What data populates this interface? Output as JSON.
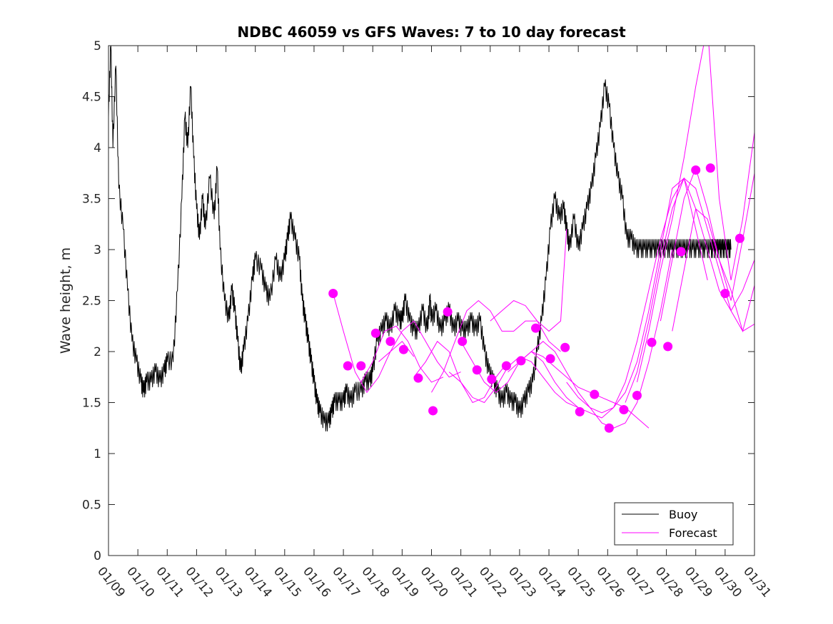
{
  "chart_data": {
    "type": "line",
    "title": "NDBC 46059 vs GFS Waves: 7 to 10 day forecast",
    "xlabel": "",
    "ylabel": "Wave height, m",
    "ylim": [
      0,
      5
    ],
    "xlim_days": [
      0,
      22
    ],
    "x_tick_labels": [
      "01/09",
      "01/10",
      "01/11",
      "01/12",
      "01/13",
      "01/14",
      "01/15",
      "01/16",
      "01/17",
      "01/18",
      "01/19",
      "01/20",
      "01/21",
      "01/22",
      "01/23",
      "01/24",
      "01/25",
      "01/26",
      "01/27",
      "01/28",
      "01/29",
      "01/30",
      "01/31"
    ],
    "y_tick_labels": [
      "0",
      "0.5",
      "1",
      "1.5",
      "2",
      "2.5",
      "3",
      "3.5",
      "4",
      "4.5",
      "5"
    ],
    "y_ticks": [
      0,
      0.5,
      1,
      1.5,
      2,
      2.5,
      3,
      3.5,
      4,
      4.5,
      5
    ],
    "legend": {
      "position": "bottom-right",
      "entries": [
        "Buoy",
        "Forecast"
      ]
    },
    "colors": {
      "buoy": "#000000",
      "forecast": "#ff00ff"
    },
    "buoy_series": {
      "name": "Buoy",
      "x": [
        0,
        0.08,
        0.15,
        0.25,
        0.35,
        0.5,
        0.65,
        0.8,
        0.95,
        1.1,
        1.2,
        1.3,
        1.45,
        1.6,
        1.75,
        1.9,
        2.0,
        2.2,
        2.35,
        2.5,
        2.6,
        2.7,
        2.8,
        2.9,
        3.0,
        3.1,
        3.2,
        3.3,
        3.45,
        3.6,
        3.7,
        3.8,
        3.95,
        4.1,
        4.2,
        4.3,
        4.4,
        4.5,
        4.6,
        4.75,
        4.9,
        5.0,
        5.2,
        5.35,
        5.5,
        5.7,
        5.85,
        6.0,
        6.1,
        6.2,
        6.35,
        6.5,
        6.6,
        6.7,
        6.8,
        6.9,
        7.0,
        7.1,
        7.2,
        7.35,
        7.5,
        7.6,
        7.7,
        7.85,
        8.0,
        8.1,
        8.25,
        8.4,
        8.6,
        8.75,
        8.9,
        9.0,
        9.15,
        9.3,
        9.45,
        9.6,
        9.75,
        9.9,
        10.0,
        10.1,
        10.25,
        10.4,
        10.55,
        10.7,
        10.85,
        10.95,
        11.0,
        11.15,
        11.3,
        11.45,
        11.6,
        11.75,
        11.9,
        12.05,
        12.2,
        12.35,
        12.5,
        12.65,
        12.8,
        12.95,
        13.1,
        13.25,
        13.4,
        13.55,
        13.7,
        13.85,
        14.0,
        14.15,
        14.3,
        14.45,
        14.6,
        14.75,
        14.9,
        15.05,
        15.2,
        15.35,
        15.5,
        15.6,
        15.7,
        15.85,
        16.0,
        16.15,
        16.3,
        16.45,
        16.6,
        16.75,
        16.9,
        17.05,
        17.2,
        17.35,
        17.5,
        17.65,
        17.8,
        17.95,
        18.1,
        18.25,
        18.4,
        18.55,
        18.7,
        18.85,
        19.0,
        19.15,
        19.3,
        19.45,
        19.6,
        19.75,
        19.9,
        20.05,
        20.2,
        20.35,
        20.5,
        20.6,
        20.7,
        20.8,
        20.9,
        21.0,
        21.1,
        21.2
      ],
      "y": [
        4.3,
        5.0,
        4.0,
        4.8,
        3.6,
        3.2,
        2.6,
        2.1,
        1.9,
        1.7,
        1.6,
        1.7,
        1.7,
        1.8,
        1.7,
        1.8,
        1.9,
        1.9,
        2.6,
        3.5,
        4.3,
        4.0,
        4.6,
        3.9,
        3.4,
        3.1,
        3.5,
        3.2,
        3.7,
        3.3,
        3.8,
        3.0,
        2.5,
        2.3,
        2.6,
        2.4,
        2.1,
        1.8,
        2.0,
        2.3,
        2.7,
        2.9,
        2.8,
        2.6,
        2.5,
        2.9,
        2.7,
        2.9,
        3.1,
        3.3,
        3.1,
        2.9,
        2.5,
        2.3,
        2.1,
        1.9,
        1.7,
        1.5,
        1.4,
        1.3,
        1.3,
        1.4,
        1.5,
        1.5,
        1.5,
        1.6,
        1.5,
        1.6,
        1.6,
        1.7,
        1.7,
        1.8,
        2.1,
        2.2,
        2.3,
        2.2,
        2.4,
        2.3,
        2.3,
        2.5,
        2.3,
        2.2,
        2.2,
        2.4,
        2.2,
        2.5,
        2.3,
        2.4,
        2.2,
        2.3,
        2.4,
        2.2,
        2.3,
        2.2,
        2.2,
        2.3,
        2.2,
        2.3,
        2.0,
        1.8,
        1.7,
        1.6,
        1.5,
        1.6,
        1.5,
        1.5,
        1.4,
        1.5,
        1.6,
        1.7,
        2.0,
        2.3,
        2.7,
        3.2,
        3.5,
        3.3,
        3.4,
        3.2,
        3.0,
        3.3,
        3.0,
        3.2,
        3.4,
        3.6,
        3.9,
        4.2,
        4.6,
        4.4,
        4.0,
        3.7,
        3.5,
        3.1,
        3.1,
        3.0,
        3.0,
        3.0,
        3.0,
        3.0,
        3.0,
        3.0,
        3.0,
        3.0,
        3.0,
        3.0,
        3.0,
        3.0,
        3.0,
        3.0,
        3.0,
        3.0,
        3.0,
        3.0,
        3.0,
        3.0,
        3.0,
        3.0,
        3.0,
        3.0
      ]
    },
    "forecast_markers": {
      "name": "Forecast",
      "x": [
        7.65,
        8.15,
        8.6,
        9.1,
        9.6,
        10.05,
        10.55,
        11.05,
        11.55,
        12.05,
        12.55,
        13.05,
        13.55,
        14.05,
        14.55,
        15.05,
        15.55,
        16.05,
        16.55,
        17.05,
        17.55,
        18.0,
        18.5,
        19.05,
        19.5,
        20.0,
        20.5,
        21.0,
        21.5
      ],
      "y": [
        2.57,
        1.86,
        1.86,
        2.18,
        2.1,
        2.02,
        1.74,
        1.42,
        2.39,
        2.1,
        1.82,
        1.73,
        1.86,
        1.91,
        2.23,
        1.93,
        2.04,
        1.41,
        1.58,
        1.25,
        1.43,
        1.57,
        2.09,
        2.05,
        2.98,
        3.78,
        3.8,
        2.57,
        3.11
      ]
    },
    "forecast_lines": [
      {
        "x": [
          7.65,
          8.0,
          8.4,
          8.8,
          9.2,
          9.6,
          10.0,
          10.4
        ],
        "y": [
          2.57,
          2.2,
          1.8,
          1.6,
          1.75,
          2.0,
          2.1,
          1.95
        ]
      },
      {
        "x": [
          8.6,
          9.0,
          9.4,
          9.8,
          10.2,
          10.6,
          11.0,
          11.4
        ],
        "y": [
          1.7,
          1.9,
          2.2,
          2.25,
          2.1,
          1.85,
          1.7,
          1.75
        ]
      },
      {
        "x": [
          9.2,
          9.6,
          10.0,
          10.4,
          10.8,
          11.2,
          11.6,
          12.0
        ],
        "y": [
          1.9,
          2.0,
          2.2,
          2.3,
          2.1,
          1.9,
          1.75,
          1.8
        ]
      },
      {
        "x": [
          10.4,
          10.8,
          11.2,
          11.6,
          12.0,
          12.4,
          12.8,
          13.2,
          13.6
        ],
        "y": [
          1.75,
          1.9,
          2.1,
          2.0,
          1.7,
          1.5,
          1.55,
          1.75,
          1.9
        ]
      },
      {
        "x": [
          11.0,
          11.4,
          11.8,
          12.2,
          12.6,
          13.0,
          13.4,
          13.8,
          14.2,
          14.6,
          15.0,
          15.4
        ],
        "y": [
          1.6,
          1.8,
          2.1,
          2.4,
          2.5,
          2.4,
          2.2,
          2.2,
          2.3,
          2.3,
          2.1,
          2.0
        ]
      },
      {
        "x": [
          11.6,
          12.0,
          12.4,
          12.8,
          13.2,
          13.6,
          14.0,
          14.4,
          14.8,
          15.2,
          15.6,
          16.0
        ],
        "y": [
          1.8,
          1.7,
          1.55,
          1.5,
          1.65,
          1.85,
          1.95,
          1.9,
          1.75,
          1.6,
          1.5,
          1.45
        ]
      },
      {
        "x": [
          12.0,
          12.4,
          12.8,
          13.2,
          13.6,
          14.0,
          14.4,
          14.8,
          15.2,
          15.6,
          16.0,
          16.4,
          16.8
        ],
        "y": [
          2.1,
          1.9,
          1.7,
          1.6,
          1.7,
          1.9,
          2.0,
          1.9,
          1.7,
          1.55,
          1.45,
          1.4,
          1.35
        ]
      },
      {
        "x": [
          13.0,
          13.4,
          13.8,
          14.2,
          14.6,
          15.0,
          15.4,
          15.6
        ],
        "y": [
          2.3,
          2.4,
          2.5,
          2.45,
          2.3,
          2.2,
          2.3,
          3.2
        ]
      },
      {
        "x": [
          13.6,
          14.0,
          14.4,
          14.8,
          15.2,
          15.6,
          16.0,
          16.4,
          16.8,
          17.2,
          17.6,
          18.0,
          18.4
        ],
        "y": [
          1.8,
          1.9,
          2.0,
          1.95,
          1.85,
          1.75,
          1.65,
          1.6,
          1.55,
          1.5,
          1.45,
          1.35,
          1.25
        ]
      },
      {
        "x": [
          14.4,
          14.8,
          15.2,
          15.6,
          16.0,
          16.4,
          16.8,
          17.2,
          17.6,
          18.0,
          18.4,
          18.8,
          19.2
        ],
        "y": [
          2.0,
          2.1,
          2.0,
          1.8,
          1.6,
          1.45,
          1.3,
          1.25,
          1.3,
          1.5,
          1.9,
          2.4,
          3.0
        ]
      },
      {
        "x": [
          15.6,
          16.0,
          16.4,
          16.8,
          17.2,
          17.6,
          18.0,
          18.4,
          18.8,
          19.2,
          19.6,
          20.0,
          20.4
        ],
        "y": [
          1.7,
          1.55,
          1.45,
          1.4,
          1.45,
          1.6,
          1.9,
          2.4,
          3.0,
          3.6,
          3.7,
          3.2,
          2.7
        ]
      },
      {
        "x": [
          16.8,
          17.2,
          17.6,
          18.0,
          18.4,
          18.8,
          19.2,
          19.6,
          20.0,
          20.4,
          20.8,
          21.2,
          21.6,
          22.0
        ],
        "y": [
          1.35,
          1.45,
          1.7,
          2.1,
          2.6,
          3.1,
          3.5,
          3.7,
          3.4,
          3.0,
          2.6,
          2.4,
          2.6,
          2.9
        ]
      },
      {
        "x": [
          17.6,
          18.0,
          18.4,
          18.8,
          19.2,
          19.6,
          20.0,
          20.4,
          20.8,
          21.2,
          21.6,
          22.0
        ],
        "y": [
          1.5,
          1.8,
          2.3,
          2.9,
          3.4,
          3.7,
          3.6,
          3.2,
          2.8,
          2.4,
          2.2,
          2.27
        ]
      },
      {
        "x": [
          18.0,
          18.4,
          18.8,
          19.2,
          19.6,
          20.0,
          20.4,
          20.8,
          21.2,
          21.6,
          22.0
        ],
        "y": [
          1.7,
          2.2,
          2.8,
          3.3,
          3.9,
          4.6,
          5.2,
          3.5,
          2.7,
          3.3,
          4.15
        ]
      },
      {
        "x": [
          18.8,
          19.2,
          19.6,
          20.0,
          20.4,
          20.8,
          21.2,
          21.6,
          22.0
        ],
        "y": [
          2.3,
          2.9,
          3.5,
          3.8,
          3.4,
          2.9,
          2.5,
          3.1,
          3.75
        ]
      },
      {
        "x": [
          19.2,
          19.6,
          20.0,
          20.4,
          20.8,
          21.2,
          21.6,
          22.0
        ],
        "y": [
          2.2,
          2.8,
          3.4,
          3.3,
          2.9,
          2.6,
          2.2,
          2.65
        ]
      }
    ]
  }
}
